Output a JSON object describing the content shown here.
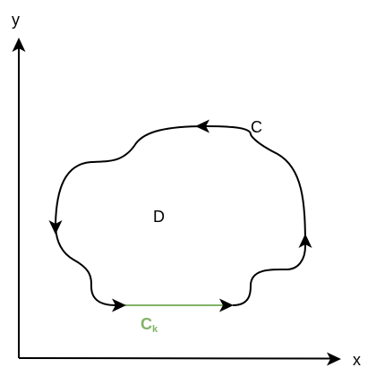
{
  "axes": {
    "x_label": "x",
    "y_label": "y"
  },
  "curve": {
    "label": "C"
  },
  "region": {
    "label": "D"
  },
  "segment": {
    "label_main": "C",
    "label_sub": "k",
    "color": "#82b366"
  },
  "colors": {
    "stroke": "#000000",
    "background": "#ffffff"
  }
}
